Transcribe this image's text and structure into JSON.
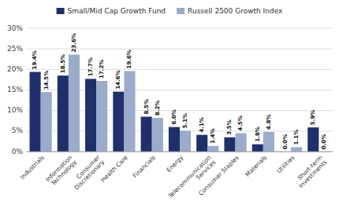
{
  "chart_data": {
    "type": "bar",
    "categories": [
      "Industrials",
      "Information\nTechnology",
      "Consumer\nDiscretionary",
      "Health Care",
      "Financials",
      "Energy",
      "Telecommunication\nServices",
      "Consumer Staples",
      "Materials",
      "Utilities",
      "Short-term\nInvestments"
    ],
    "series": [
      {
        "name": "Small/Mid Cap Growth Fund",
        "color": "#1f2f6b",
        "values": [
          19.4,
          18.5,
          17.7,
          14.6,
          8.5,
          6.0,
          4.1,
          3.5,
          1.8,
          0.0,
          5.9
        ],
        "value_labels": [
          "19.4%",
          "18.5%",
          "17.7%",
          "14.6%",
          "8.5%",
          "6.0%",
          "4.1%",
          "3.5%",
          "1.8%",
          "0.0%",
          "5.9%"
        ]
      },
      {
        "name": "Russell 2500 Growth Index",
        "color": "#9aabcb",
        "values": [
          14.5,
          23.6,
          17.2,
          19.6,
          8.2,
          5.1,
          1.4,
          4.5,
          4.8,
          1.1,
          0.0
        ],
        "value_labels": [
          "14.5%",
          "23.6%",
          "17.2%",
          "19.6%",
          "8.2%",
          "5.1%",
          "1.4%",
          "4.5%",
          "4.8%",
          "1.1%",
          "0.0%"
        ]
      }
    ],
    "ylim": [
      0,
      30
    ],
    "yticks": [
      {
        "value": 0,
        "label": "0%"
      },
      {
        "value": 5,
        "label": "5%"
      },
      {
        "value": 10,
        "label": "10%"
      },
      {
        "value": 15,
        "label": "15%"
      },
      {
        "value": 20,
        "label": "20%"
      },
      {
        "value": 25,
        "label": "25%"
      },
      {
        "value": 30,
        "label": "30%"
      }
    ],
    "grid": true,
    "legend": "top",
    "data_labels": true
  }
}
